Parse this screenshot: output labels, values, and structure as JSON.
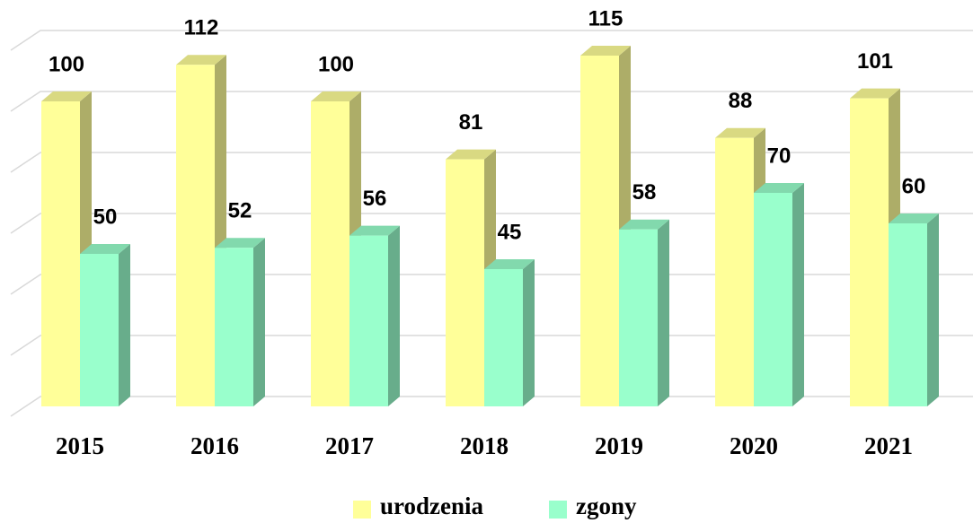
{
  "chart_data": {
    "type": "bar3d",
    "categories": [
      "2015",
      "2016",
      "2017",
      "2018",
      "2019",
      "2020",
      "2021"
    ],
    "series": [
      {
        "name": "urodzenia",
        "color": "#ffff99",
        "values": [
          100,
          112,
          100,
          81,
          115,
          88,
          101
        ]
      },
      {
        "name": "zgony",
        "color": "#99ffcc",
        "values": [
          50,
          52,
          56,
          45,
          58,
          70,
          60
        ]
      }
    ],
    "ylim": [
      0,
      120
    ],
    "yticks": [
      0,
      20,
      40,
      60,
      80,
      100,
      120
    ],
    "grid": true,
    "legend": "bottom"
  }
}
